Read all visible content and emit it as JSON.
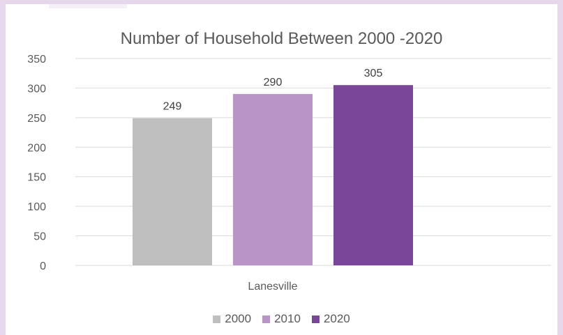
{
  "colors": {
    "background": "#e6d8ea",
    "panel": "#ffffff",
    "gridline": "#d9d9d9"
  },
  "chart_data": {
    "type": "bar",
    "title": "Number of Household Between 2000 -2020",
    "categories": [
      "Lanesville"
    ],
    "series": [
      {
        "name": "2000",
        "values": [
          249
        ],
        "color": "#bfbfbf"
      },
      {
        "name": "2010",
        "values": [
          290
        ],
        "color": "#b994c7"
      },
      {
        "name": "2020",
        "values": [
          305
        ],
        "color": "#7a4699"
      }
    ],
    "ylim": [
      0,
      350
    ],
    "yticks": [
      0,
      50,
      100,
      150,
      200,
      250,
      300,
      350
    ],
    "grid": true,
    "legend": "bottom",
    "data_labels": true
  }
}
